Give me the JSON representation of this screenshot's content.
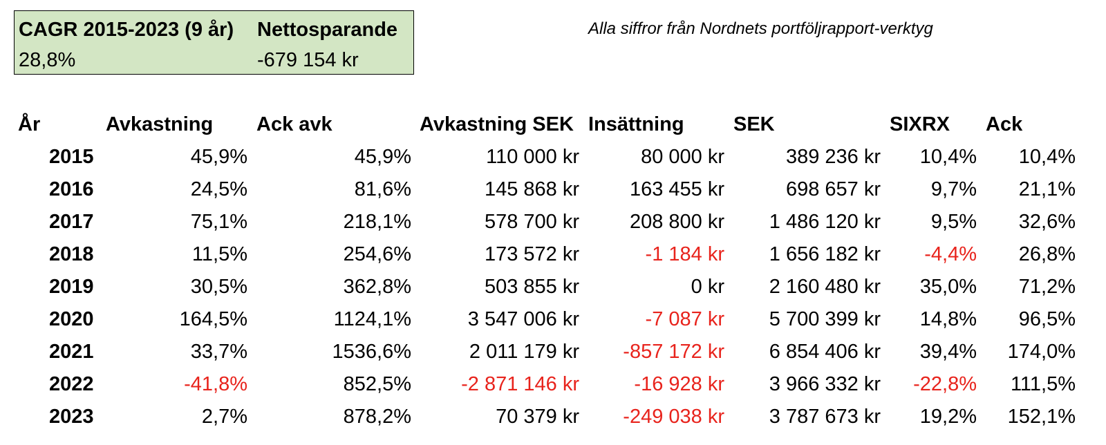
{
  "summary": {
    "cagr_label": "CAGR 2015-2023 (9 år)",
    "cagr_value": "28,8%",
    "savings_label": "Nettosparande",
    "savings_value": "-679 154 kr"
  },
  "note": "Alla siffror från Nordnets portföljrapport-verktyg",
  "colors": {
    "negative": "#e8231c",
    "summary_bg": "#d3e6c4"
  },
  "table": {
    "headers": [
      "År",
      "Avkastning",
      "Ack avk",
      "Avkastning SEK",
      "Insättning",
      "SEK",
      "SIXRX",
      "Ack"
    ],
    "rows": [
      [
        "2015",
        "45,9%",
        "45,9%",
        "110 000 kr",
        "80 000 kr",
        "389 236 kr",
        "10,4%",
        "10,4%"
      ],
      [
        "2016",
        "24,5%",
        "81,6%",
        "145 868 kr",
        "163 455 kr",
        "698 657 kr",
        "9,7%",
        "21,1%"
      ],
      [
        "2017",
        "75,1%",
        "218,1%",
        "578 700 kr",
        "208 800 kr",
        "1 486 120 kr",
        "9,5%",
        "32,6%"
      ],
      [
        "2018",
        "11,5%",
        "254,6%",
        "173 572 kr",
        "-1 184 kr",
        "1 656 182 kr",
        "-4,4%",
        "26,8%"
      ],
      [
        "2019",
        "30,5%",
        "362,8%",
        "503 855 kr",
        "0 kr",
        "2 160 480 kr",
        "35,0%",
        "71,2%"
      ],
      [
        "2020",
        "164,5%",
        "1124,1%",
        "3 547 006 kr",
        "-7 087 kr",
        "5 700 399 kr",
        "14,8%",
        "96,5%"
      ],
      [
        "2021",
        "33,7%",
        "1536,6%",
        "2 011 179 kr",
        "-857 172 kr",
        "6 854 406 kr",
        "39,4%",
        "174,0%"
      ],
      [
        "2022",
        "-41,8%",
        "852,5%",
        "-2 871 146 kr",
        "-16 928 kr",
        "3 966 332 kr",
        "-22,8%",
        "111,5%"
      ],
      [
        "2023",
        "2,7%",
        "878,2%",
        "70 379 kr",
        "-249 038 kr",
        "3 787 673 kr",
        "19,2%",
        "152,1%"
      ]
    ]
  }
}
